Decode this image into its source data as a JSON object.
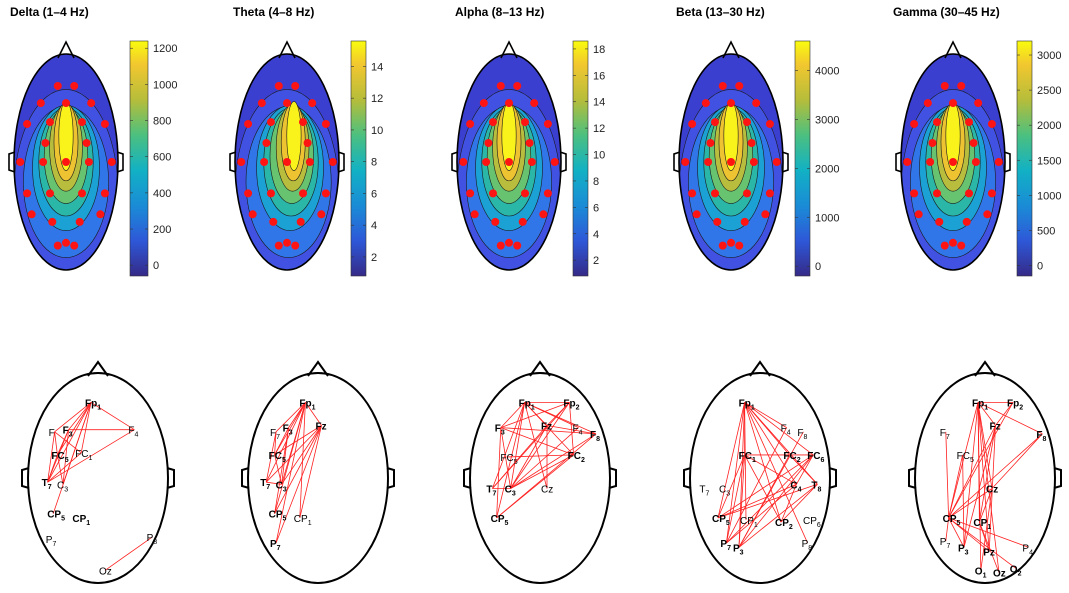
{
  "panels": [
    {
      "title": "Delta (1–4 Hz)",
      "colorbar_ticks": [
        "1200",
        "1000",
        "800",
        "600",
        "400",
        "200",
        "0"
      ],
      "colorbar_range": [
        -60,
        1240
      ],
      "hot_region": "center",
      "network": {
        "electrodes": [
          {
            "base": "Fp",
            "sub": "1",
            "bold": true
          },
          {
            "base": "F",
            "sub": "3",
            "bold": true
          },
          {
            "base": "F",
            "sub": "",
            "bold": false
          },
          {
            "base": "F",
            "sub": "4",
            "bold": false
          },
          {
            "base": "FC",
            "sub": "5",
            "bold": true
          },
          {
            "base": "FC",
            "sub": "1",
            "bold": false
          },
          {
            "base": "T",
            "sub": "7",
            "bold": true
          },
          {
            "base": "C",
            "sub": "3",
            "bold": false
          },
          {
            "base": "CP",
            "sub": "5",
            "bold": true
          },
          {
            "base": "CP",
            "sub": "1",
            "bold": true
          },
          {
            "base": "P",
            "sub": "7",
            "bold": false
          },
          {
            "base": "P",
            "sub": "8",
            "bold": false
          },
          {
            "base": "Oz",
            "sub": "",
            "bold": false
          }
        ]
      }
    },
    {
      "title": "Theta (4–8 Hz)",
      "colorbar_ticks": [
        "14",
        "12",
        "10",
        "8",
        "6",
        "4",
        "2"
      ],
      "colorbar_range": [
        0.8,
        15.6
      ],
      "hot_region": "center-right",
      "network": {
        "electrodes": [
          {
            "base": "Fp",
            "sub": "1",
            "bold": true
          },
          {
            "base": "F",
            "sub": "7",
            "bold": false
          },
          {
            "base": "F",
            "sub": "3",
            "bold": true
          },
          {
            "base": "Fz",
            "sub": "",
            "bold": true
          },
          {
            "base": "FC",
            "sub": "5",
            "bold": true
          },
          {
            "base": "T",
            "sub": "7",
            "bold": true
          },
          {
            "base": "C",
            "sub": "3",
            "bold": true
          },
          {
            "base": "CP",
            "sub": "5",
            "bold": true
          },
          {
            "base": "CP",
            "sub": "1",
            "bold": false
          },
          {
            "base": "P",
            "sub": "7",
            "bold": true
          }
        ]
      }
    },
    {
      "title": "Alpha (8–13 Hz)",
      "colorbar_ticks": [
        "18",
        "16",
        "14",
        "12",
        "10",
        "8",
        "6",
        "4",
        "2"
      ],
      "colorbar_range": [
        0.8,
        18.6
      ],
      "hot_region": "center",
      "network": {
        "electrodes": [
          {
            "base": "Fp",
            "sub": "1",
            "bold": true
          },
          {
            "base": "Fp",
            "sub": "2",
            "bold": true
          },
          {
            "base": "F",
            "sub": "3",
            "bold": true
          },
          {
            "base": "Fz",
            "sub": "",
            "bold": true
          },
          {
            "base": "F",
            "sub": "4",
            "bold": false
          },
          {
            "base": "F",
            "sub": "8",
            "bold": true
          },
          {
            "base": "FC",
            "sub": "5",
            "bold": false
          },
          {
            "base": "FC",
            "sub": "2",
            "bold": true
          },
          {
            "base": "T",
            "sub": "7",
            "bold": true
          },
          {
            "base": "C",
            "sub": "3",
            "bold": true
          },
          {
            "base": "Cz",
            "sub": "",
            "bold": false
          },
          {
            "base": "CP",
            "sub": "5",
            "bold": true
          }
        ]
      }
    },
    {
      "title": "Beta (13–30 Hz)",
      "colorbar_ticks": [
        "4000",
        "3000",
        "2000",
        "1000",
        "0"
      ],
      "colorbar_range": [
        -200,
        4600
      ],
      "hot_region": "center",
      "network": {
        "electrodes": [
          {
            "base": "Fp",
            "sub": "1",
            "bold": true
          },
          {
            "base": "F",
            "sub": "4",
            "bold": false
          },
          {
            "base": "F",
            "sub": "8",
            "bold": false
          },
          {
            "base": "FC",
            "sub": "1",
            "bold": true
          },
          {
            "base": "FC",
            "sub": "2",
            "bold": true
          },
          {
            "base": "FC",
            "sub": "6",
            "bold": true
          },
          {
            "base": "C",
            "sub": "4",
            "bold": true
          },
          {
            "base": "T",
            "sub": "8",
            "bold": true
          },
          {
            "base": "T",
            "sub": "7",
            "bold": false
          },
          {
            "base": "C",
            "sub": "3",
            "bold": false
          },
          {
            "base": "CP",
            "sub": "5",
            "bold": true
          },
          {
            "base": "CP",
            "sub": "1",
            "bold": false
          },
          {
            "base": "CP",
            "sub": "2",
            "bold": true
          },
          {
            "base": "CP",
            "sub": "6",
            "bold": false
          },
          {
            "base": "P",
            "sub": "7",
            "bold": true
          },
          {
            "base": "P",
            "sub": "3",
            "bold": true
          },
          {
            "base": "P",
            "sub": "8",
            "bold": false
          }
        ]
      }
    },
    {
      "title": "Gamma (30–45 Hz)",
      "colorbar_ticks": [
        "3000",
        "2500",
        "2000",
        "1500",
        "1000",
        "500",
        "0"
      ],
      "colorbar_range": [
        -150,
        3200
      ],
      "hot_region": "center",
      "network": {
        "electrodes": [
          {
            "base": "Fp",
            "sub": "1",
            "bold": true
          },
          {
            "base": "Fp",
            "sub": "2",
            "bold": true
          },
          {
            "base": "F",
            "sub": "7",
            "bold": false
          },
          {
            "base": "Fz",
            "sub": "",
            "bold": true
          },
          {
            "base": "F",
            "sub": "8",
            "bold": true
          },
          {
            "base": "FC",
            "sub": "5",
            "bold": false
          },
          {
            "base": "Cz",
            "sub": "",
            "bold": true
          },
          {
            "base": "CP",
            "sub": "5",
            "bold": true
          },
          {
            "base": "CP",
            "sub": "1",
            "bold": true
          },
          {
            "base": "P",
            "sub": "7",
            "bold": false
          },
          {
            "base": "P",
            "sub": "3",
            "bold": true
          },
          {
            "base": "Pz",
            "sub": "",
            "bold": true
          },
          {
            "base": "P",
            "sub": "4",
            "bold": false
          },
          {
            "base": "O",
            "sub": "1",
            "bold": true
          },
          {
            "base": "Oz",
            "sub": "",
            "bold": true
          },
          {
            "base": "O",
            "sub": "2",
            "bold": true
          }
        ]
      }
    }
  ]
}
